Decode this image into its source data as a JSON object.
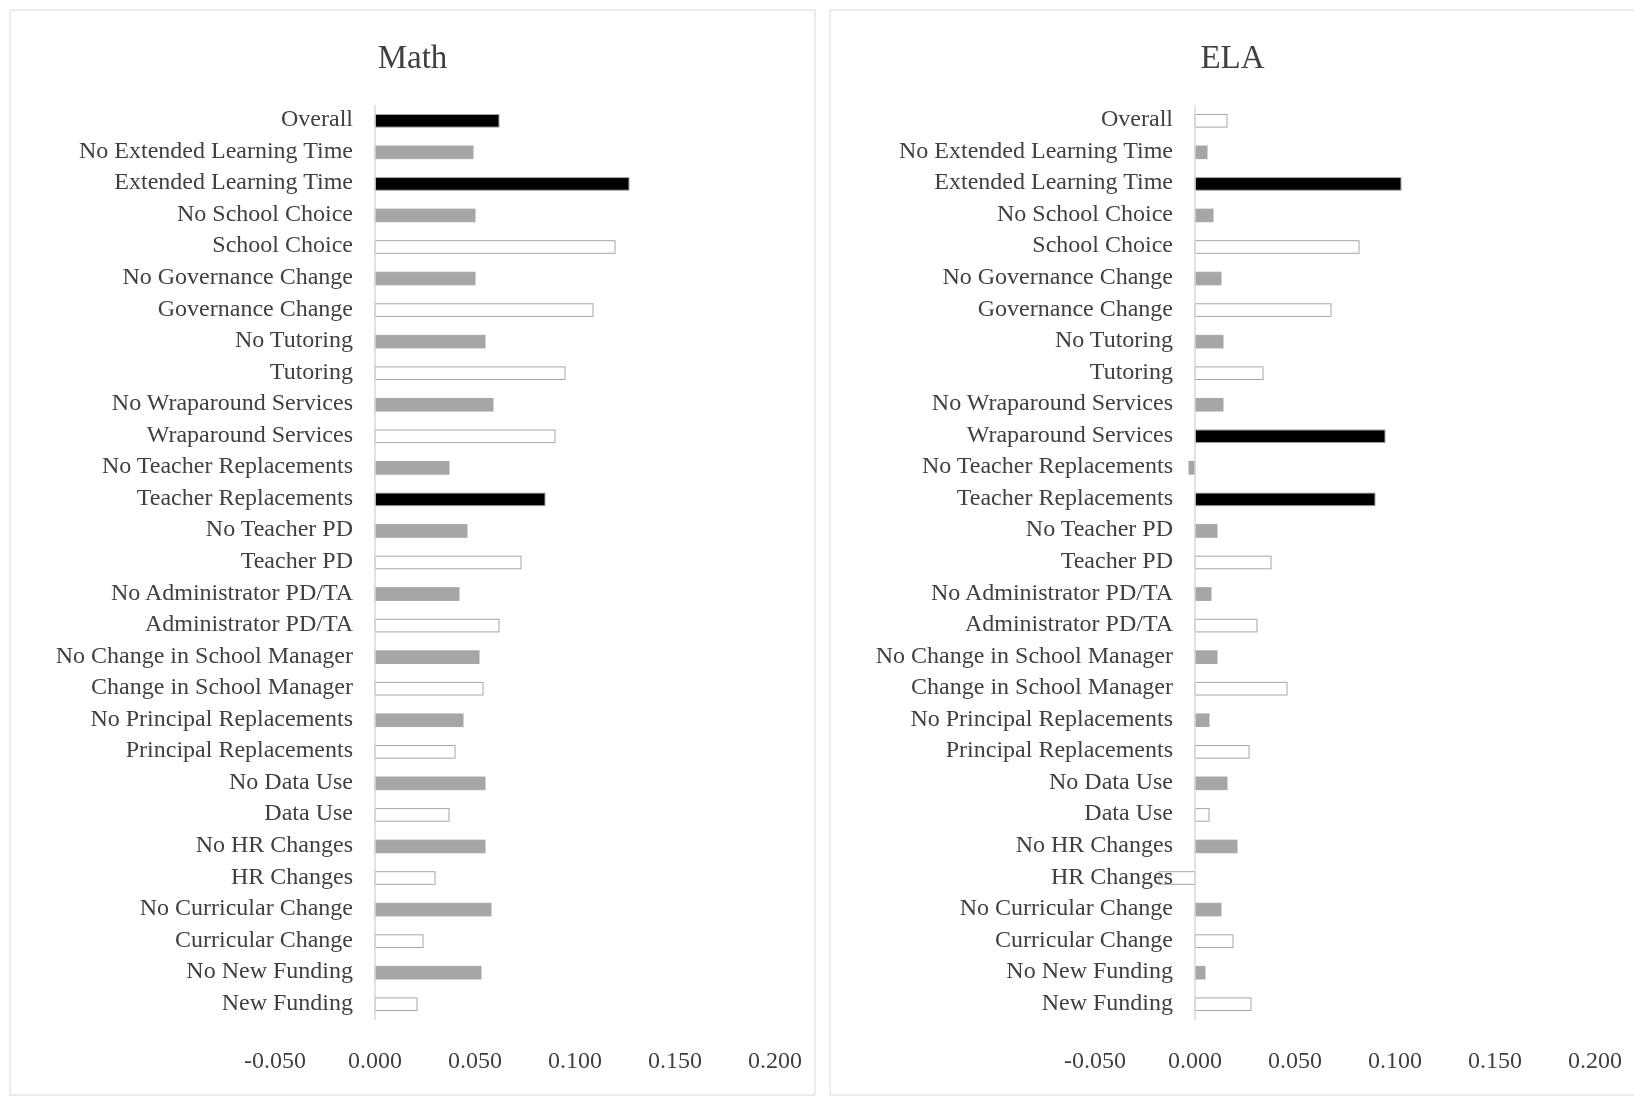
{
  "chart_data": [
    {
      "type": "bar",
      "orientation": "horizontal",
      "title": "Math",
      "categories": [
        "Overall",
        "No Extended Learning Time",
        "Extended Learning Time",
        "No School Choice",
        "School Choice",
        "No Governance Change",
        "Governance Change",
        "No Tutoring",
        "Tutoring",
        "No Wraparound Services",
        "Wraparound Services",
        "No Teacher Replacements",
        "Teacher Replacements",
        "No Teacher PD",
        "Teacher PD",
        "No Administrator PD/TA",
        "Administrator PD/TA",
        "No Change in School Manager",
        "Change in School Manager",
        "No Principal Replacements",
        "Principal Replacements",
        "No Data Use",
        "Data Use",
        "No HR Changes",
        "HR Changes",
        "No Curricular Change",
        "Curricular Change",
        "No New Funding",
        "New Funding"
      ],
      "values": [
        0.062,
        0.049,
        0.127,
        0.05,
        0.12,
        0.05,
        0.109,
        0.055,
        0.095,
        0.059,
        0.09,
        0.037,
        0.085,
        0.046,
        0.073,
        0.042,
        0.062,
        0.052,
        0.054,
        0.044,
        0.04,
        0.055,
        0.037,
        0.055,
        0.03,
        0.058,
        0.024,
        0.053,
        0.021
      ],
      "colors": [
        "#000000",
        "#a6a6a6",
        "#000000",
        "#a6a6a6",
        "#ffffff",
        "#a6a6a6",
        "#ffffff",
        "#a6a6a6",
        "#ffffff",
        "#a6a6a6",
        "#ffffff",
        "#a6a6a6",
        "#000000",
        "#a6a6a6",
        "#ffffff",
        "#a6a6a6",
        "#ffffff",
        "#a6a6a6",
        "#ffffff",
        "#a6a6a6",
        "#ffffff",
        "#a6a6a6",
        "#ffffff",
        "#a6a6a6",
        "#ffffff",
        "#a6a6a6",
        "#ffffff",
        "#a6a6a6",
        "#ffffff"
      ],
      "xlim": [
        -0.05,
        0.2
      ],
      "xticks": [
        {
          "value": -0.05,
          "label": "-0.050"
        },
        {
          "value": 0,
          "label": "0.000"
        },
        {
          "value": 0.05,
          "label": "0.050"
        },
        {
          "value": 0.1,
          "label": "0.100"
        },
        {
          "value": 0.15,
          "label": "0.150"
        },
        {
          "value": 0.2,
          "label": "0.200"
        }
      ],
      "grid": false
    },
    {
      "type": "bar",
      "orientation": "horizontal",
      "title": "ELA",
      "categories": [
        "Overall",
        "No Extended Learning Time",
        "Extended Learning Time",
        "No School Choice",
        "School Choice",
        "No Governance Change",
        "Governance Change",
        "No Tutoring",
        "Tutoring",
        "No Wraparound Services",
        "Wraparound Services",
        "No Teacher Replacements",
        "Teacher Replacements",
        "No Teacher PD",
        "Teacher PD",
        "No Administrator PD/TA",
        "Administrator PD/TA",
        "No Change in School Manager",
        "Change in School Manager",
        "No Principal Replacements",
        "Principal Replacements",
        "No Data Use",
        "Data Use",
        "No HR Changes",
        "HR Changes",
        "No Curricular Change",
        "Curricular Change",
        "No New Funding",
        "New Funding"
      ],
      "values": [
        0.016,
        0.006,
        0.103,
        0.009,
        0.082,
        0.013,
        0.068,
        0.014,
        0.034,
        0.014,
        0.095,
        -0.003,
        0.09,
        0.011,
        0.038,
        0.008,
        0.031,
        0.011,
        0.046,
        0.007,
        0.027,
        0.016,
        0.007,
        0.021,
        -0.018,
        0.013,
        0.019,
        0.005,
        0.028
      ],
      "colors": [
        "#ffffff",
        "#a6a6a6",
        "#000000",
        "#a6a6a6",
        "#ffffff",
        "#a6a6a6",
        "#ffffff",
        "#a6a6a6",
        "#ffffff",
        "#a6a6a6",
        "#000000",
        "#a6a6a6",
        "#000000",
        "#a6a6a6",
        "#ffffff",
        "#a6a6a6",
        "#ffffff",
        "#a6a6a6",
        "#ffffff",
        "#a6a6a6",
        "#ffffff",
        "#a6a6a6",
        "#ffffff",
        "#a6a6a6",
        "#ffffff",
        "#a6a6a6",
        "#ffffff",
        "#a6a6a6",
        "#ffffff"
      ],
      "xlim": [
        -0.05,
        0.2
      ],
      "xticks": [
        {
          "value": -0.05,
          "label": "-0.050"
        },
        {
          "value": 0,
          "label": "0.000"
        },
        {
          "value": 0.05,
          "label": "0.050"
        },
        {
          "value": 0.1,
          "label": "0.100"
        },
        {
          "value": 0.15,
          "label": "0.150"
        },
        {
          "value": 0.2,
          "label": "0.200"
        }
      ],
      "grid": false
    }
  ]
}
